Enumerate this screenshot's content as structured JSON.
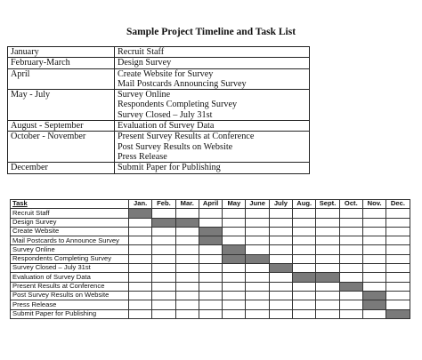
{
  "title": "Sample Project Timeline and Task List",
  "timeline": [
    {
      "period": "January",
      "tasks": [
        "Recruit Staff"
      ]
    },
    {
      "period": "February-March",
      "tasks": [
        "Design Survey"
      ]
    },
    {
      "period": "April",
      "tasks": [
        "Create Website for Survey",
        "Mail Postcards Announcing Survey"
      ]
    },
    {
      "period": "May - July",
      "tasks": [
        "Survey Online",
        "Respondents Completing Survey",
        "Survey Closed – July 31st"
      ]
    },
    {
      "period": "August - September",
      "tasks": [
        "Evaluation of Survey Data"
      ]
    },
    {
      "period": "October - November",
      "tasks": [
        "Present Survey Results at Conference",
        "Post Survey Results on Website",
        "Press Release"
      ]
    },
    {
      "period": "December",
      "tasks": [
        "Submit Paper for Publishing"
      ]
    }
  ],
  "gantt": {
    "task_header": "Task",
    "months": [
      "Jan.",
      "Feb.",
      "Mar.",
      "April",
      "May",
      "June",
      "July",
      "Aug.",
      "Sept.",
      "Oct.",
      "Nov.",
      "Dec."
    ],
    "rows": [
      {
        "task": "Recruit Staff",
        "filled": [
          0
        ]
      },
      {
        "task": "Design Survey",
        "filled": [
          1,
          2
        ]
      },
      {
        "task": "Create Website",
        "filled": [
          3
        ]
      },
      {
        "task": "Mail Postcards to Announce Survey",
        "filled": [
          3
        ]
      },
      {
        "task": "Survey Online",
        "filled": [
          4
        ]
      },
      {
        "task": "Respondents Completing Survey",
        "filled": [
          4,
          5
        ]
      },
      {
        "task": "Survey Closed – July 31st",
        "filled": [
          6
        ]
      },
      {
        "task": "Evaluation of Survey Data",
        "filled": [
          7,
          8
        ]
      },
      {
        "task": "Present Results at Conference",
        "filled": [
          9
        ]
      },
      {
        "task": "Post Survey Results on Website",
        "filled": [
          10
        ]
      },
      {
        "task": "Press Release",
        "filled": [
          10
        ]
      },
      {
        "task": "Submit Paper for Publishing",
        "filled": [
          11
        ]
      }
    ]
  }
}
